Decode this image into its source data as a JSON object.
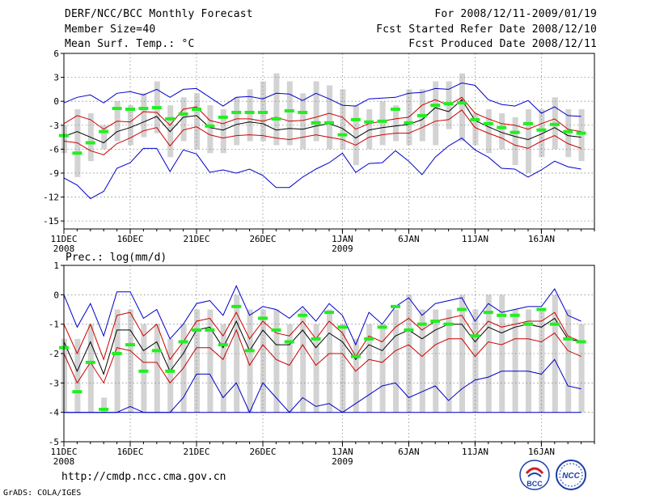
{
  "header": {
    "title": "DERF/NCC/BCC Monthly Forecast",
    "member_size": "Member Size=40",
    "panel1_title": "Mean Surf. Temp.: °C",
    "forecast_for": "For 2008/12/11-2009/01/19",
    "started_refer": "Fcst Started Refer Date 2008/12/10",
    "produced": "Fcst Produced Date 2008/12/11"
  },
  "footer": {
    "url": "http://cmdp.ncc.cma.gov.cn",
    "grads": "GrADS: COLA/IGES",
    "logo1": "BCC",
    "logo2": "NCC"
  },
  "colors": {
    "bar": "#d3d3d3",
    "observed": "#22ee22",
    "envelope": "#0000cc",
    "spread": "#cc0000",
    "mean": "#000000"
  },
  "chart_data": [
    {
      "type": "line",
      "title": "Mean Surf. Temp.: °C",
      "ylim": [
        -16,
        6
      ],
      "yticks": [
        6,
        3,
        0,
        -3,
        -6,
        -9,
        -12,
        -15
      ],
      "x_ticks": [
        {
          "day": 1,
          "label": "11DEC",
          "sub": "2008"
        },
        {
          "day": 6,
          "label": "16DEC",
          "sub": ""
        },
        {
          "day": 11,
          "label": "21DEC",
          "sub": ""
        },
        {
          "day": 16,
          "label": "26DEC",
          "sub": ""
        },
        {
          "day": 22,
          "label": "1JAN",
          "sub": "2009"
        },
        {
          "day": 27,
          "label": "6JAN",
          "sub": ""
        },
        {
          "day": 32,
          "label": "11JAN",
          "sub": ""
        },
        {
          "day": 37,
          "label": "16JAN",
          "sub": ""
        }
      ],
      "xlim": [
        1,
        41
      ],
      "days": [
        1,
        2,
        3,
        4,
        5,
        6,
        7,
        8,
        9,
        10,
        11,
        12,
        13,
        14,
        15,
        16,
        17,
        18,
        19,
        20,
        21,
        22,
        23,
        24,
        25,
        26,
        27,
        28,
        29,
        30,
        31,
        32,
        33,
        34,
        35,
        36,
        37,
        38,
        39,
        40
      ],
      "series": [
        {
          "name": "max",
          "values": [
            -0.2,
            0.5,
            0.8,
            -0.2,
            1.0,
            1.2,
            0.8,
            1.5,
            0.5,
            1.5,
            1.6,
            0.5,
            -0.6,
            0.5,
            0.6,
            0.3,
            1.0,
            0.9,
            0.1,
            1.0,
            0.3,
            -0.5,
            -0.6,
            0.3,
            0.4,
            0.5,
            1.0,
            1.1,
            1.6,
            1.5,
            2.3,
            2.0,
            0.2,
            -0.4,
            -0.6,
            0.1,
            -1.5,
            -0.7,
            -1.8,
            -1.9
          ]
        },
        {
          "name": "upper",
          "values": [
            -2.8,
            -1.8,
            -2.3,
            -3.5,
            -2.5,
            -2.6,
            -1.3,
            -1.4,
            -3.0,
            -1.0,
            -0.7,
            -2.4,
            -2.8,
            -2.2,
            -2.2,
            -2.5,
            -2.0,
            -2.5,
            -2.4,
            -2.0,
            -1.5,
            -2.0,
            -3.5,
            -2.8,
            -2.5,
            -2.2,
            -2.0,
            -0.5,
            0.2,
            -0.5,
            0.5,
            -1.5,
            -2.2,
            -2.8,
            -3.0,
            -3.5,
            -2.8,
            -2.2,
            -3.5,
            -3.8
          ]
        },
        {
          "name": "mean",
          "values": [
            -4.4,
            -3.8,
            -4.5,
            -5.2,
            -3.8,
            -3.3,
            -2.6,
            -1.9,
            -3.8,
            -2.0,
            -1.8,
            -3.3,
            -3.6,
            -2.9,
            -2.6,
            -2.8,
            -3.6,
            -3.4,
            -3.5,
            -3.1,
            -2.8,
            -3.4,
            -4.6,
            -3.6,
            -3.3,
            -3.1,
            -2.9,
            -2.3,
            -0.8,
            -1.3,
            0.2,
            -2.4,
            -3.2,
            -3.9,
            -4.4,
            -4.8,
            -4.1,
            -3.3,
            -4.3,
            -4.5
          ]
        },
        {
          "name": "lower",
          "values": [
            -5.0,
            -5.2,
            -6.2,
            -6.7,
            -5.3,
            -4.6,
            -3.7,
            -3.3,
            -5.6,
            -3.6,
            -3.2,
            -4.2,
            -4.6,
            -4.3,
            -4.2,
            -4.3,
            -4.6,
            -4.8,
            -4.5,
            -4.2,
            -4.5,
            -4.8,
            -5.5,
            -4.5,
            -4.2,
            -4.0,
            -4.0,
            -3.3,
            -2.5,
            -2.3,
            -1.1,
            -3.3,
            -4.0,
            -4.6,
            -5.5,
            -5.9,
            -5.0,
            -4.3,
            -5.3,
            -5.9
          ]
        },
        {
          "name": "min",
          "values": [
            -9.6,
            -10.5,
            -12.2,
            -11.3,
            -8.4,
            -7.7,
            -5.9,
            -5.9,
            -8.8,
            -6.1,
            -6.6,
            -8.9,
            -8.6,
            -9.0,
            -8.5,
            -9.3,
            -10.8,
            -10.8,
            -9.5,
            -8.5,
            -7.7,
            -6.5,
            -8.9,
            -7.8,
            -7.7,
            -6.2,
            -7.5,
            -9.2,
            -7.0,
            -5.6,
            -4.6,
            -6.1,
            -7.0,
            -8.4,
            -8.5,
            -9.5,
            -8.6,
            -7.5,
            -8.2,
            -8.5
          ]
        }
      ],
      "observed": [
        -4.3,
        -6.5,
        -5.2,
        -3.8,
        -0.9,
        -1.0,
        -0.9,
        -0.8,
        -2.2,
        -1.6,
        -1.0,
        -3.1,
        -2.0,
        -1.4,
        -1.4,
        -1.4,
        -2.2,
        -1.2,
        -1.4,
        -2.7,
        -2.7,
        -4.2,
        -2.3,
        -2.6,
        -2.5,
        -1.0,
        -2.7,
        -1.8,
        -0.5,
        -0.3,
        -0.2,
        -2.3,
        -2.8,
        -3.3,
        -3.9,
        -2.8,
        -3.6,
        -2.9,
        -3.8,
        -4.0
      ],
      "bars": [
        {
          "lo": -6.5,
          "hi": -3.0
        },
        {
          "lo": -9.5,
          "hi": -1.0
        },
        {
          "lo": -7.5,
          "hi": -1.5
        },
        {
          "lo": -6.0,
          "hi": -3.0
        },
        {
          "lo": -5.0,
          "hi": 0.0
        },
        {
          "lo": -5.5,
          "hi": -0.5
        },
        {
          "lo": -4.5,
          "hi": 1.0
        },
        {
          "lo": -4.0,
          "hi": 2.5
        },
        {
          "lo": -7.0,
          "hi": -0.5
        },
        {
          "lo": -5.0,
          "hi": 0.5
        },
        {
          "lo": -6.0,
          "hi": 1.0
        },
        {
          "lo": -6.5,
          "hi": -0.5
        },
        {
          "lo": -6.5,
          "hi": -1.0
        },
        {
          "lo": -5.5,
          "hi": 0.5
        },
        {
          "lo": -5.0,
          "hi": 1.5
        },
        {
          "lo": -5.0,
          "hi": 2.5
        },
        {
          "lo": -5.5,
          "hi": 3.5
        },
        {
          "lo": -5.5,
          "hi": 2.5
        },
        {
          "lo": -6.0,
          "hi": 1.0
        },
        {
          "lo": -5.0,
          "hi": 2.5
        },
        {
          "lo": -6.0,
          "hi": 2.0
        },
        {
          "lo": -6.0,
          "hi": 1.5
        },
        {
          "lo": -8.0,
          "hi": -0.5
        },
        {
          "lo": -6.0,
          "hi": -1.0
        },
        {
          "lo": -5.5,
          "hi": 0.0
        },
        {
          "lo": -5.0,
          "hi": -0.5
        },
        {
          "lo": -5.5,
          "hi": 1.5
        },
        {
          "lo": -5.0,
          "hi": 1.5
        },
        {
          "lo": -5.5,
          "hi": 2.5
        },
        {
          "lo": -3.5,
          "hi": 2.5
        },
        {
          "lo": -5.0,
          "hi": 3.5
        },
        {
          "lo": -5.5,
          "hi": -1.5
        },
        {
          "lo": -6.5,
          "hi": -1.0
        },
        {
          "lo": -6.0,
          "hi": -1.5
        },
        {
          "lo": -8.0,
          "hi": -2.0
        },
        {
          "lo": -9.0,
          "hi": -1.0
        },
        {
          "lo": -7.0,
          "hi": -1.0
        },
        {
          "lo": -6.0,
          "hi": 0.5
        },
        {
          "lo": -7.0,
          "hi": -1.0
        },
        {
          "lo": -7.5,
          "hi": -1.0
        }
      ]
    },
    {
      "type": "line",
      "title": "Prec.: log(mm/d)",
      "ylim": [
        -5,
        1
      ],
      "yticks": [
        1,
        0,
        -1,
        -2,
        -3,
        -4,
        -5
      ],
      "x_ticks": [
        {
          "day": 1,
          "label": "11DEC",
          "sub": "2008"
        },
        {
          "day": 6,
          "label": "16DEC",
          "sub": ""
        },
        {
          "day": 11,
          "label": "21DEC",
          "sub": ""
        },
        {
          "day": 16,
          "label": "26DEC",
          "sub": ""
        },
        {
          "day": 22,
          "label": "1JAN",
          "sub": "2009"
        },
        {
          "day": 27,
          "label": "6JAN",
          "sub": ""
        },
        {
          "day": 32,
          "label": "11JAN",
          "sub": ""
        },
        {
          "day": 37,
          "label": "16JAN",
          "sub": ""
        }
      ],
      "xlim": [
        1,
        41
      ],
      "days": [
        1,
        2,
        3,
        4,
        5,
        6,
        7,
        8,
        9,
        10,
        11,
        12,
        13,
        14,
        15,
        16,
        17,
        18,
        19,
        20,
        21,
        22,
        23,
        24,
        25,
        26,
        27,
        28,
        29,
        30,
        31,
        32,
        33,
        34,
        35,
        36,
        37,
        38,
        39,
        40
      ],
      "series": [
        {
          "name": "max",
          "values": [
            0.0,
            -1.1,
            -0.3,
            -1.4,
            0.1,
            0.1,
            -0.8,
            -0.5,
            -1.5,
            -1.0,
            -0.3,
            -0.2,
            -0.7,
            0.3,
            -0.7,
            -0.4,
            -0.5,
            -0.8,
            -0.4,
            -0.9,
            -0.3,
            -0.7,
            -1.7,
            -0.6,
            -1.0,
            -0.4,
            -0.1,
            -0.7,
            -0.3,
            -0.2,
            -0.1,
            -0.9,
            -0.3,
            -0.6,
            -0.5,
            -0.4,
            -0.4,
            0.2,
            -0.7,
            -0.9
          ]
        },
        {
          "name": "upper",
          "values": [
            -1.0,
            -2.0,
            -1.0,
            -2.2,
            -0.7,
            -0.6,
            -1.4,
            -1.0,
            -2.2,
            -1.6,
            -0.9,
            -0.8,
            -1.4,
            -0.6,
            -1.5,
            -0.9,
            -1.3,
            -1.4,
            -0.9,
            -1.5,
            -0.9,
            -1.3,
            -2.1,
            -1.4,
            -1.6,
            -1.1,
            -0.8,
            -1.2,
            -0.9,
            -0.8,
            -0.7,
            -1.4,
            -0.9,
            -1.1,
            -1.0,
            -0.9,
            -0.9,
            -0.6,
            -1.4,
            -1.6
          ]
        },
        {
          "name": "mean",
          "values": [
            -1.6,
            -2.6,
            -1.6,
            -2.7,
            -1.2,
            -1.2,
            -1.9,
            -1.6,
            -2.6,
            -2.0,
            -1.2,
            -1.1,
            -1.8,
            -0.9,
            -1.9,
            -1.2,
            -1.7,
            -1.7,
            -1.2,
            -1.8,
            -1.3,
            -1.6,
            -2.2,
            -1.7,
            -1.9,
            -1.4,
            -1.2,
            -1.5,
            -1.2,
            -1.0,
            -1.0,
            -1.6,
            -1.1,
            -1.3,
            -1.1,
            -1.0,
            -1.1,
            -0.8,
            -1.5,
            -1.6
          ]
        },
        {
          "name": "lower",
          "values": [
            -2.0,
            -3.0,
            -2.3,
            -3.0,
            -1.8,
            -1.9,
            -2.3,
            -2.3,
            -3.0,
            -2.5,
            -1.8,
            -1.8,
            -2.2,
            -1.2,
            -2.4,
            -1.7,
            -2.2,
            -2.4,
            -1.7,
            -2.4,
            -2.0,
            -2.0,
            -2.6,
            -2.2,
            -2.3,
            -1.9,
            -1.7,
            -2.1,
            -1.7,
            -1.5,
            -1.5,
            -2.1,
            -1.6,
            -1.7,
            -1.5,
            -1.5,
            -1.6,
            -1.3,
            -1.9,
            -2.1
          ]
        },
        {
          "name": "min",
          "values": [
            -4.0,
            -4.0,
            -4.0,
            -4.0,
            -4.0,
            -3.8,
            -4.0,
            -4.0,
            -4.0,
            -3.5,
            -2.7,
            -2.7,
            -3.5,
            -3.0,
            -4.0,
            -3.0,
            -3.5,
            -4.0,
            -3.5,
            -3.8,
            -3.7,
            -4.0,
            -3.7,
            -3.4,
            -3.1,
            -3.0,
            -3.5,
            -3.3,
            -3.1,
            -3.6,
            -3.2,
            -2.9,
            -2.8,
            -2.6,
            -2.6,
            -2.6,
            -2.7,
            -2.2,
            -3.1,
            -3.2
          ]
        },
        {
          "name": "floor",
          "values": [
            -4.0,
            -4.0,
            -4.0,
            -4.0,
            -4.0,
            -4.0,
            -4.0,
            -4.0,
            -4.0,
            -4.0,
            -4.0,
            -4.0,
            -4.0,
            -4.0,
            -4.0,
            -4.0,
            -4.0,
            -4.0,
            -4.0,
            -4.0,
            -4.0,
            -4.0,
            -4.0,
            -4.0,
            -4.0,
            -4.0,
            -4.0,
            -4.0,
            -4.0,
            -4.0,
            -4.0,
            -4.0,
            -4.0,
            -4.0,
            -4.0,
            -4.0,
            -4.0,
            -4.0,
            -4.0,
            -4.0
          ]
        }
      ],
      "observed": [
        -1.8,
        -3.3,
        -2.3,
        -3.9,
        -2.0,
        -1.7,
        -2.6,
        -1.9,
        -2.6,
        -1.6,
        -1.2,
        -1.2,
        -1.7,
        -0.4,
        -1.9,
        -0.8,
        -1.2,
        -1.6,
        -0.7,
        -1.5,
        -0.6,
        -1.1,
        -2.1,
        -1.5,
        -1.1,
        -0.4,
        -1.2,
        -1.0,
        -0.9,
        -1.0,
        -0.5,
        -1.4,
        -0.6,
        -0.7,
        -0.7,
        -1.0,
        -0.5,
        -1.0,
        -1.5,
        -1.6
      ],
      "bars": [
        {
          "lo": -4.0,
          "hi": -1.5
        },
        {
          "lo": -4.0,
          "hi": -1.5
        },
        {
          "lo": -4.0,
          "hi": -1.0
        },
        {
          "lo": -4.0,
          "hi": -3.5
        },
        {
          "lo": -4.0,
          "hi": -0.5
        },
        {
          "lo": -4.0,
          "hi": -0.5
        },
        {
          "lo": -4.0,
          "hi": -1.0
        },
        {
          "lo": -4.0,
          "hi": -1.0
        },
        {
          "lo": -4.0,
          "hi": -1.5
        },
        {
          "lo": -4.0,
          "hi": -1.0
        },
        {
          "lo": -4.0,
          "hi": -0.5
        },
        {
          "lo": -4.0,
          "hi": -0.5
        },
        {
          "lo": -4.0,
          "hi": -1.0
        },
        {
          "lo": -4.0,
          "hi": 0.0
        },
        {
          "lo": -4.0,
          "hi": -0.5
        },
        {
          "lo": -4.0,
          "hi": -0.5
        },
        {
          "lo": -4.0,
          "hi": -0.5
        },
        {
          "lo": -4.0,
          "hi": -1.0
        },
        {
          "lo": -4.0,
          "hi": -0.5
        },
        {
          "lo": -4.0,
          "hi": -1.0
        },
        {
          "lo": -4.0,
          "hi": -0.5
        },
        {
          "lo": -4.0,
          "hi": -1.0
        },
        {
          "lo": -4.0,
          "hi": -1.5
        },
        {
          "lo": -4.0,
          "hi": -1.0
        },
        {
          "lo": -4.0,
          "hi": -1.0
        },
        {
          "lo": -4.0,
          "hi": -0.5
        },
        {
          "lo": -4.0,
          "hi": 0.0
        },
        {
          "lo": -4.0,
          "hi": -0.5
        },
        {
          "lo": -4.0,
          "hi": -0.5
        },
        {
          "lo": -4.0,
          "hi": -0.5
        },
        {
          "lo": -4.0,
          "hi": 0.0
        },
        {
          "lo": -4.0,
          "hi": -0.5
        },
        {
          "lo": -4.0,
          "hi": 0.0
        },
        {
          "lo": -4.0,
          "hi": 0.0
        },
        {
          "lo": -4.0,
          "hi": -0.5
        },
        {
          "lo": -4.0,
          "hi": -0.5
        },
        {
          "lo": -4.0,
          "hi": -0.5
        },
        {
          "lo": -4.0,
          "hi": 0.0
        },
        {
          "lo": -4.0,
          "hi": -0.5
        },
        {
          "lo": -4.0,
          "hi": -1.0
        }
      ]
    }
  ]
}
